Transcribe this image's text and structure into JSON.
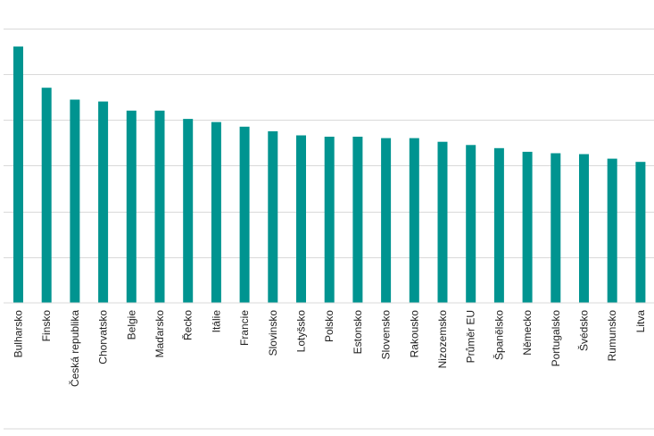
{
  "chart_data": {
    "type": "bar",
    "categories": [
      "Bulharsko",
      "Finsko",
      "Česká republika",
      "Chorvatsko",
      "Belgie",
      "Maďarsko",
      "Řecko",
      "Itálie",
      "Francie",
      "Slovinsko",
      "Lotyšsko",
      "Polsko",
      "Estonsko",
      "Slovensko",
      "Rakousko",
      "Nizozemsko",
      "Průměr EU",
      "Španělsko",
      "Německo",
      "Portugalsko",
      "Švédsko",
      "Rumunsko",
      "Litva"
    ],
    "values": [
      5.6,
      4.7,
      4.44,
      4.4,
      4.2,
      4.2,
      4.02,
      3.95,
      3.85,
      3.75,
      3.66,
      3.63,
      3.63,
      3.6,
      3.6,
      3.52,
      3.45,
      3.38,
      3.3,
      3.27,
      3.25,
      3.15,
      3.08
    ],
    "ylim": [
      0,
      6.5
    ],
    "grid": true,
    "bar_color": "#009490",
    "grid_color": "#d9d9d9"
  }
}
